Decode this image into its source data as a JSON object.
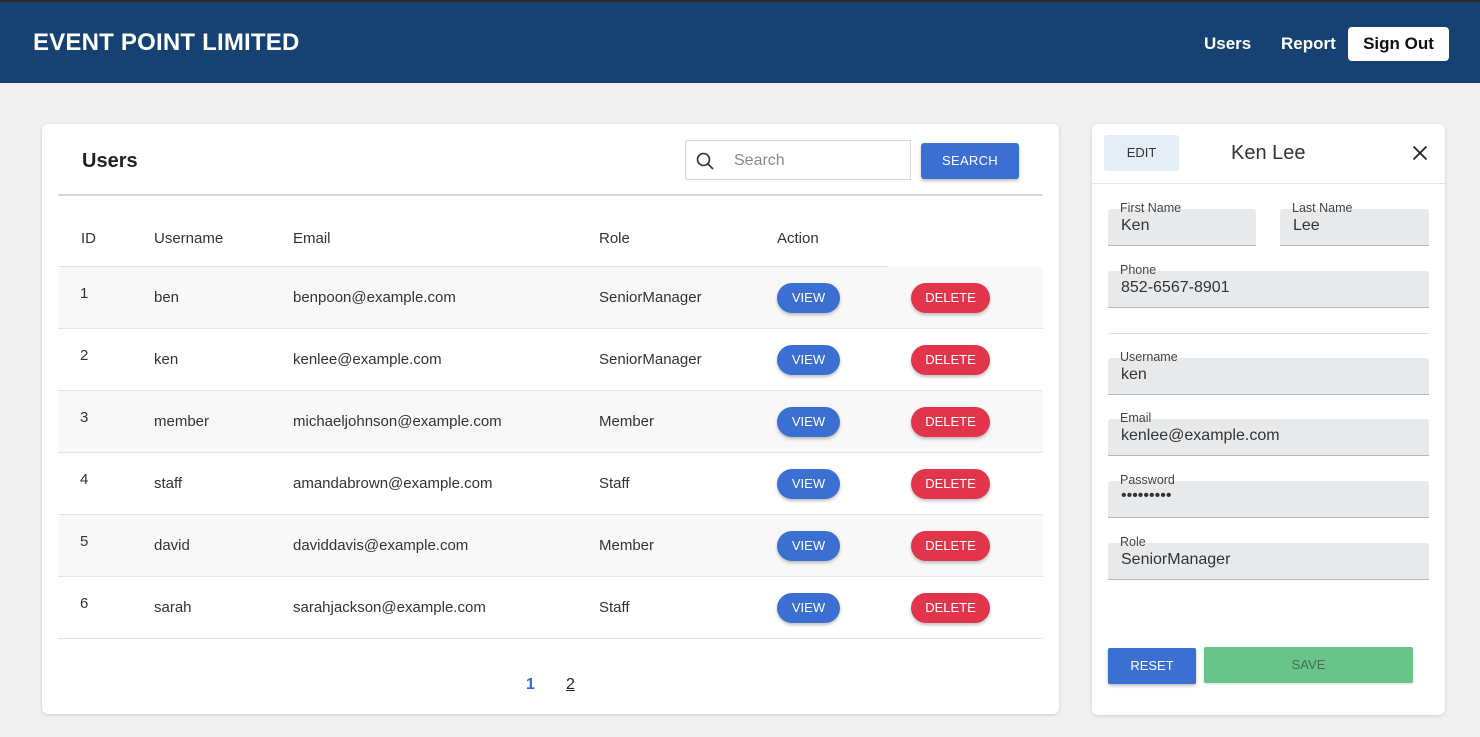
{
  "header": {
    "brand": "EVENT POINT LIMITED",
    "nav": {
      "users": "Users",
      "report": "Report",
      "sign_out": "Sign Out"
    }
  },
  "users_panel": {
    "title": "Users",
    "search_placeholder": "Search",
    "search_button": "SEARCH",
    "columns": {
      "id": "ID",
      "username": "Username",
      "email": "Email",
      "role": "Role",
      "action": "Action"
    },
    "rows": [
      {
        "id": "1",
        "username": "ben",
        "email": "benpoon@example.com",
        "role": "SeniorManager",
        "view": "VIEW",
        "delete": "DELETE"
      },
      {
        "id": "2",
        "username": "ken",
        "email": "kenlee@example.com",
        "role": "SeniorManager",
        "view": "VIEW",
        "delete": "DELETE"
      },
      {
        "id": "3",
        "username": "member",
        "email": "michaeljohnson@example.com",
        "role": "Member",
        "view": "VIEW",
        "delete": "DELETE"
      },
      {
        "id": "4",
        "username": "staff",
        "email": "amandabrown@example.com",
        "role": "Staff",
        "view": "VIEW",
        "delete": "DELETE"
      },
      {
        "id": "5",
        "username": "david",
        "email": "daviddavis@example.com",
        "role": "Member",
        "view": "VIEW",
        "delete": "DELETE"
      },
      {
        "id": "6",
        "username": "sarah",
        "email": "sarahjackson@example.com",
        "role": "Staff",
        "view": "VIEW",
        "delete": "DELETE"
      }
    ],
    "pagination": {
      "current": "1",
      "next": "2"
    }
  },
  "detail_panel": {
    "edit_button": "EDIT",
    "name": "Ken Lee",
    "fields": {
      "first_name": {
        "label": "First Name",
        "value": "Ken"
      },
      "last_name": {
        "label": "Last Name",
        "value": "Lee"
      },
      "phone": {
        "label": "Phone",
        "value": "852-6567-8901"
      },
      "username": {
        "label": "Username",
        "value": "ken"
      },
      "email": {
        "label": "Email",
        "value": "kenlee@example.com"
      },
      "password": {
        "label": "Password",
        "value": "•••••••••"
      },
      "role": {
        "label": "Role",
        "value": "SeniorManager"
      }
    },
    "reset_button": "RESET",
    "save_button": "SAVE"
  },
  "colors": {
    "header_bg": "#154273",
    "primary": "#3b6fd1",
    "danger": "#e2344a",
    "save": "#67c58a"
  },
  "icons": {
    "search": "search-icon",
    "close": "close-icon"
  }
}
